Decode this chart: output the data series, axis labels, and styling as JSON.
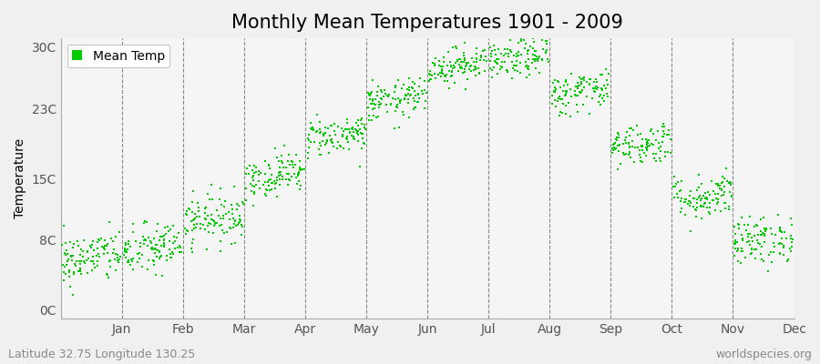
{
  "title": "Monthly Mean Temperatures 1901 - 2009",
  "ylabel": "Temperature",
  "yticks": [
    0,
    8,
    15,
    23,
    30
  ],
  "ytick_labels": [
    "0C",
    "8C",
    "15C",
    "23C",
    "30C"
  ],
  "ylim": [
    -1,
    31
  ],
  "months": [
    "Jan",
    "Feb",
    "Mar",
    "Apr",
    "May",
    "Jun",
    "Jul",
    "Aug",
    "Sep",
    "Oct",
    "Nov",
    "Dec"
  ],
  "month_means": [
    5.5,
    6.5,
    10.0,
    15.0,
    19.5,
    23.5,
    27.5,
    28.2,
    24.5,
    18.5,
    12.5,
    7.5
  ],
  "month_stds": [
    1.5,
    1.5,
    1.4,
    1.2,
    1.1,
    1.1,
    1.0,
    1.1,
    1.2,
    1.2,
    1.3,
    1.4
  ],
  "n_years": 109,
  "dot_color": "#00cc00",
  "dot_size": 4,
  "plot_bg_color": "#f5f5f5",
  "fig_bg_color": "#f0f0f0",
  "legend_label": "Mean Temp",
  "subtitle_left": "Latitude 32.75 Longitude 130.25",
  "subtitle_right": "worldspecies.org",
  "title_fontsize": 15,
  "label_fontsize": 10,
  "tick_fontsize": 10,
  "subtitle_fontsize": 9,
  "seed": 42,
  "warming_trend": 0.008
}
